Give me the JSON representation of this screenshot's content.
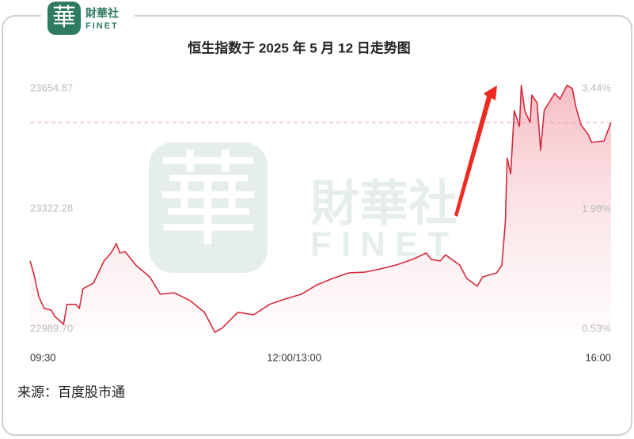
{
  "logo": {
    "char": "華",
    "name": "財華社",
    "sub": "FINET"
  },
  "source": "来源：百度股市通",
  "chart_data": {
    "type": "line",
    "title": "恒生指数于 2025 年 5 月 12 日走势图",
    "x": [
      0,
      2,
      5,
      8,
      12,
      14,
      19,
      21,
      26,
      28,
      30,
      36,
      42,
      46,
      49,
      51,
      54,
      60,
      68,
      74,
      82,
      91,
      99,
      105,
      109,
      118,
      127,
      136,
      145,
      154,
      163,
      172,
      181,
      190,
      199,
      208,
      217,
      225,
      228,
      233,
      236,
      244,
      248,
      254,
      257,
      265,
      268,
      270,
      271,
      273,
      275,
      278,
      279,
      281,
      284,
      285,
      288,
      290,
      292,
      298,
      301,
      305,
      308,
      310,
      313,
      317,
      319,
      326,
      330
    ],
    "series": [
      {
        "name": "恒生指数",
        "color": "#d42a3c",
        "values": [
          23178,
          23145,
          23079,
          23047,
          23042,
          23025,
          23003,
          23058,
          23058,
          23047,
          23101,
          23117,
          23178,
          23200,
          23226,
          23200,
          23204,
          23167,
          23134,
          23086,
          23090,
          23068,
          23036,
          22981,
          22992,
          23036,
          23029,
          23058,
          23073,
          23086,
          23112,
          23130,
          23145,
          23147,
          23156,
          23167,
          23182,
          23200,
          23182,
          23178,
          23195,
          23167,
          23130,
          23108,
          23134,
          23145,
          23167,
          23287,
          23462,
          23419,
          23594,
          23550,
          23664,
          23594,
          23561,
          23637,
          23615,
          23484,
          23594,
          23642,
          23626,
          23664,
          23655,
          23605,
          23554,
          23528,
          23506,
          23510,
          23561
        ]
      }
    ],
    "reference_line": 23561,
    "xlim": [
      0,
      330
    ],
    "xticks": [
      {
        "value": 0,
        "label": "09:30"
      },
      {
        "value": 150,
        "label": "12:00/13:00"
      },
      {
        "value": 330,
        "label": "16:00"
      }
    ],
    "ylim": [
      22989.7,
      23654.87
    ],
    "yticks": [
      {
        "value": 22989.7,
        "label": "22989.70"
      },
      23322.28,
      23654.87
    ],
    "y2lim": [
      0.53,
      3.44
    ],
    "y2ticks": [
      {
        "value": 0.53,
        "label": "0.53%"
      },
      {
        "value": 1.98,
        "label": "1.98%"
      },
      {
        "value": 3.44,
        "label": "3.44%"
      }
    ]
  }
}
